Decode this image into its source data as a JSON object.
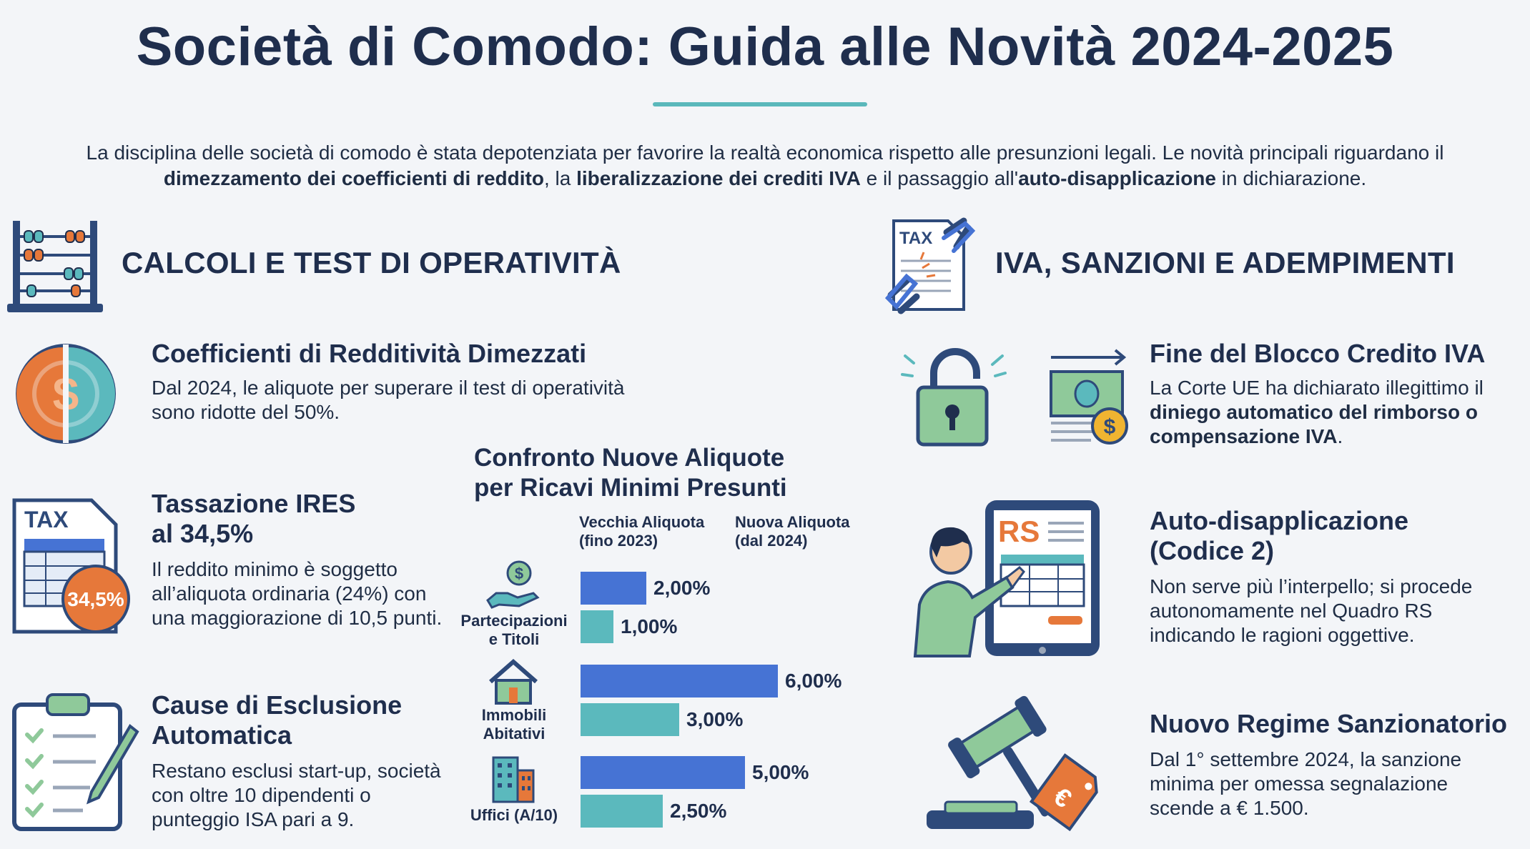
{
  "header": {
    "title": "Società di Comodo: Guida alle Novità 2024-2025",
    "intro_parts": [
      "La disciplina delle società di comodo è stata depotenziata per favorire la realtà economica rispetto alle presunzioni legali. Le novità principali riguardano il ",
      "dimezzamento dei coefficienti di reddito",
      ", la ",
      "liberalizzazione dei crediti IVA",
      " e il passaggio all'",
      "auto-disapplicazione",
      " in dichiarazione."
    ]
  },
  "left_section": {
    "title": "CALCOLI E TEST DI OPERATIVITÀ",
    "items": [
      {
        "title": "Coefficienti di Redditività Dimezzati",
        "text": "Dal 2024, le aliquote per superare il test di operatività sono ridotte del 50%."
      },
      {
        "title_line1": "Tassazione IRES",
        "title_line2": "al 34,5%",
        "badge": "34,5%",
        "icon_label": "TAX",
        "text": "Il reddito minimo è soggetto all’aliquota ordinaria (24%) con una maggiorazione di 10,5 punti."
      },
      {
        "title_line1": "Cause di Esclusione",
        "title_line2": "Automatica",
        "text": "Restano esclusi start-up, società con oltre 10 dipendenti o punteggio ISA pari a 9."
      }
    ]
  },
  "right_section": {
    "title": "IVA, SANZIONI E ADEMPIMENTI",
    "icon_label": "TAX",
    "items": [
      {
        "title": "Fine del Blocco Credito IVA",
        "text_plain": "La Corte UE ha dichiarato illegittimo il ",
        "text_bold": "diniego automatico del rimborso o compensazione IVA",
        "text_end": "."
      },
      {
        "title_line1": "Auto-disapplicazione",
        "title_line2": "(Codice 2)",
        "icon_label": "RS",
        "text": "Non serve più l’interpello; si procede autonomamente nel Quadro RS indicando le ragioni oggettive."
      },
      {
        "title": "Nuovo Regime Sanzionatorio",
        "text": "Dal 1° settembre 2024, la sanzione minima per omessa segnalazione scende a € 1.500."
      }
    ]
  },
  "chart_data": {
    "type": "bar",
    "orientation": "horizontal",
    "title_line1": "Confronto Nuove Aliquote",
    "title_line2": "per Ricavi Minimi Presunti",
    "categories": [
      "Partecipazioni e Titoli",
      "Immobili Abitativi",
      "Uffici (A/10)"
    ],
    "category_lines": [
      [
        "Partecipazioni",
        "e Titoli"
      ],
      [
        "Immobili",
        "Abitativi"
      ],
      [
        "Uffici (A/10)"
      ]
    ],
    "series": [
      {
        "name_line1": "Vecchia Aliquota",
        "name_line2": "(fino 2023)",
        "values": [
          2.0,
          6.0,
          5.0
        ],
        "labels": [
          "2,00%",
          "6,00%",
          "5,00%"
        ],
        "color": "#4673d4"
      },
      {
        "name_line1": "Nuova Aliquota",
        "name_line2": "(dal 2024)",
        "values": [
          1.0,
          3.0,
          2.5
        ],
        "labels": [
          "1,00%",
          "3,00%",
          "2,50%"
        ],
        "color": "#5bb9bd"
      }
    ],
    "unit": "%",
    "xlim": [
      0,
      6.5
    ]
  },
  "colors": {
    "navy": "#1f2e4d",
    "teal": "#5bb9bd",
    "blue": "#4673d4",
    "orange": "#e6783a",
    "green": "#8fc99a"
  }
}
